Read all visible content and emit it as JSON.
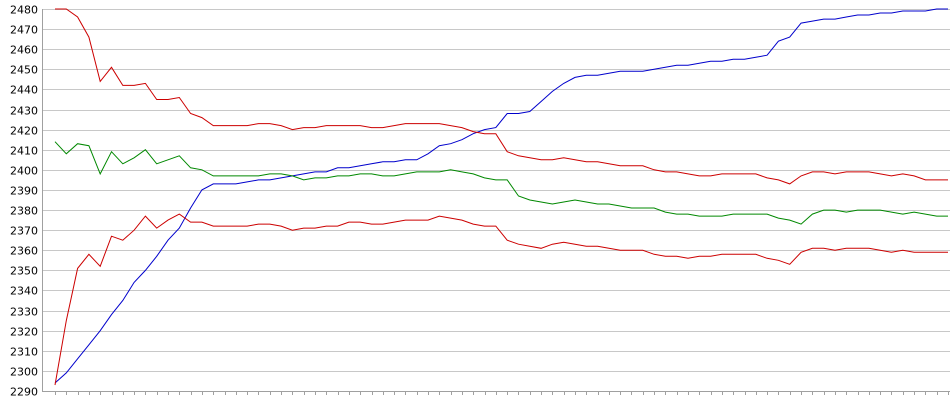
{
  "chart_data": {
    "type": "line",
    "title": "",
    "xlabel": "",
    "ylabel": "",
    "ylim": [
      2290,
      2480
    ],
    "xlim": [
      0,
      79
    ],
    "yticks": [
      2290,
      2300,
      2310,
      2320,
      2330,
      2340,
      2350,
      2360,
      2370,
      2380,
      2390,
      2400,
      2410,
      2420,
      2430,
      2440,
      2450,
      2460,
      2470,
      2480
    ],
    "grid": true,
    "legend": "none",
    "x": [
      0,
      1,
      2,
      3,
      4,
      5,
      6,
      7,
      8,
      9,
      10,
      11,
      12,
      13,
      14,
      15,
      16,
      17,
      18,
      19,
      20,
      21,
      22,
      23,
      24,
      25,
      26,
      27,
      28,
      29,
      30,
      31,
      32,
      33,
      34,
      35,
      36,
      37,
      38,
      39,
      40,
      41,
      42,
      43,
      44,
      45,
      46,
      47,
      48,
      49,
      50,
      51,
      52,
      53,
      54,
      55,
      56,
      57,
      58,
      59,
      60,
      61,
      62,
      63,
      64,
      65,
      66,
      67,
      68,
      69,
      70,
      71,
      72,
      73,
      74,
      75,
      76,
      77,
      78,
      79
    ],
    "series": [
      {
        "color": "#0000cc",
        "values": [
          2294,
          2299,
          2306,
          2313,
          2320,
          2328,
          2335,
          2344,
          2350,
          2357,
          2365,
          2371,
          2381,
          2390,
          2393,
          2393,
          2393,
          2394,
          2395,
          2395,
          2396,
          2397,
          2398,
          2399,
          2399,
          2401,
          2401,
          2402,
          2403,
          2404,
          2404,
          2405,
          2405,
          2408,
          2412,
          2413,
          2415,
          2418,
          2420,
          2421,
          2428,
          2428,
          2429,
          2434,
          2439,
          2443,
          2446,
          2447,
          2447,
          2448,
          2449,
          2449,
          2449,
          2450,
          2451,
          2452,
          2452,
          2453,
          2454,
          2454,
          2455,
          2455,
          2456,
          2457,
          2464,
          2466,
          2473,
          2474,
          2475,
          2475,
          2476,
          2477,
          2477,
          2478,
          2478,
          2479,
          2479,
          2479,
          2480,
          2480
        ]
      },
      {
        "color": "#cc0000",
        "values": [
          2480,
          2480,
          2476,
          2466,
          2444,
          2451,
          2442,
          2442,
          2443,
          2435,
          2435,
          2436,
          2428,
          2426,
          2422,
          2422,
          2422,
          2422,
          2423,
          2423,
          2422,
          2420,
          2421,
          2421,
          2422,
          2422,
          2422,
          2422,
          2421,
          2421,
          2422,
          2423,
          2423,
          2423,
          2423,
          2422,
          2421,
          2419,
          2418,
          2418,
          2409,
          2407,
          2406,
          2405,
          2405,
          2406,
          2405,
          2404,
          2404,
          2403,
          2402,
          2402,
          2402,
          2400,
          2399,
          2399,
          2398,
          2397,
          2397,
          2398,
          2398,
          2398,
          2398,
          2396,
          2395,
          2393,
          2397,
          2399,
          2399,
          2398,
          2399,
          2399,
          2399,
          2398,
          2397,
          2398,
          2397,
          2395,
          2395,
          2395
        ]
      },
      {
        "color": "#008800",
        "values": [
          2414,
          2408,
          2413,
          2412,
          2398,
          2409,
          2403,
          2406,
          2410,
          2403,
          2405,
          2407,
          2401,
          2400,
          2397,
          2397,
          2397,
          2397,
          2397,
          2398,
          2398,
          2397,
          2395,
          2396,
          2396,
          2397,
          2397,
          2398,
          2398,
          2397,
          2397,
          2398,
          2399,
          2399,
          2399,
          2400,
          2399,
          2398,
          2396,
          2395,
          2395,
          2387,
          2385,
          2384,
          2383,
          2384,
          2385,
          2384,
          2383,
          2383,
          2382,
          2381,
          2381,
          2381,
          2379,
          2378,
          2378,
          2377,
          2377,
          2377,
          2378,
          2378,
          2378,
          2378,
          2376,
          2375,
          2373,
          2378,
          2380,
          2380,
          2379,
          2380,
          2380,
          2380,
          2379,
          2378,
          2379,
          2378,
          2377,
          2377
        ]
      },
      {
        "color": "#cc0000",
        "values": [
          2293,
          2325,
          2351,
          2358,
          2352,
          2367,
          2365,
          2370,
          2377,
          2371,
          2375,
          2378,
          2374,
          2374,
          2372,
          2372,
          2372,
          2372,
          2373,
          2373,
          2372,
          2370,
          2371,
          2371,
          2372,
          2372,
          2374,
          2374,
          2373,
          2373,
          2374,
          2375,
          2375,
          2375,
          2377,
          2376,
          2375,
          2373,
          2372,
          2372,
          2365,
          2363,
          2362,
          2361,
          2363,
          2364,
          2363,
          2362,
          2362,
          2361,
          2360,
          2360,
          2360,
          2358,
          2357,
          2357,
          2356,
          2357,
          2357,
          2358,
          2358,
          2358,
          2358,
          2356,
          2355,
          2353,
          2359,
          2361,
          2361,
          2360,
          2361,
          2361,
          2361,
          2360,
          2359,
          2360,
          2359,
          2359,
          2359,
          2359
        ]
      }
    ]
  }
}
